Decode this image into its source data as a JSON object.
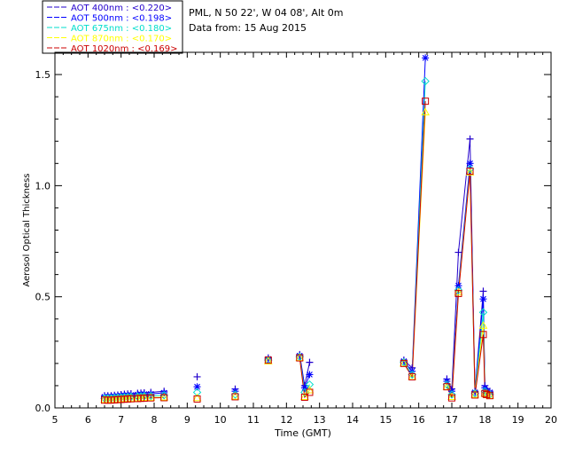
{
  "info": {
    "location": "PML, N 50 22', W 04 08', Alt 0m",
    "date_line": "Data from: 15 Aug 2015"
  },
  "chart_data": {
    "type": "scatter",
    "xlabel": "Time (GMT)",
    "ylabel": "Aerosol Optical Thickness",
    "xlim": [
      5,
      20
    ],
    "ylim": [
      0,
      1.6
    ],
    "x_ticks": [
      "5",
      "6",
      "7",
      "8",
      "9",
      "10",
      "11",
      "12",
      "13",
      "14",
      "15",
      "16",
      "17",
      "18",
      "19",
      "20"
    ],
    "y_ticks": [
      "0.0",
      "0.5",
      "1.0",
      "1.5"
    ],
    "grid": false,
    "legend_position": "top-left, outside plot",
    "series": [
      {
        "name": "AOT  400nm : <0.220>",
        "color": "#2200cc",
        "marker": "plus",
        "points": [
          [
            6.5,
            0.055
          ],
          [
            6.6,
            0.055
          ],
          [
            6.7,
            0.055
          ],
          [
            6.8,
            0.057
          ],
          [
            6.9,
            0.058
          ],
          [
            7.0,
            0.06
          ],
          [
            7.1,
            0.062
          ],
          [
            7.2,
            0.063
          ],
          [
            7.3,
            0.064
          ],
          [
            7.5,
            0.066
          ],
          [
            7.6,
            0.067
          ],
          [
            7.7,
            0.068
          ],
          [
            7.9,
            0.07
          ],
          [
            8.3,
            0.075
          ],
          [
            9.3,
            0.14
          ],
          [
            10.45,
            0.085
          ],
          [
            11.45,
            0.225
          ],
          [
            12.4,
            0.24
          ],
          [
            12.55,
            0.1
          ],
          [
            12.7,
            0.205
          ],
          [
            15.55,
            0.215
          ],
          [
            15.8,
            0.18
          ],
          [
            16.85,
            0.13
          ],
          [
            17.0,
            0.085
          ],
          [
            17.2,
            0.7
          ],
          [
            17.55,
            1.21
          ],
          [
            17.7,
            0.075
          ],
          [
            17.95,
            0.525
          ],
          [
            18.0,
            0.1
          ],
          [
            18.05,
            0.085
          ],
          [
            18.15,
            0.075
          ]
        ]
      },
      {
        "name": "AOT  500nm : <0.198>",
        "color": "#0000ff",
        "marker": "asterisk",
        "points": [
          [
            6.5,
            0.05
          ],
          [
            6.6,
            0.05
          ],
          [
            6.7,
            0.05
          ],
          [
            6.8,
            0.052
          ],
          [
            6.9,
            0.053
          ],
          [
            7.0,
            0.055
          ],
          [
            7.1,
            0.056
          ],
          [
            7.2,
            0.057
          ],
          [
            7.3,
            0.058
          ],
          [
            7.5,
            0.06
          ],
          [
            7.6,
            0.061
          ],
          [
            7.7,
            0.062
          ],
          [
            7.9,
            0.063
          ],
          [
            8.3,
            0.068
          ],
          [
            9.3,
            0.095
          ],
          [
            10.45,
            0.075
          ],
          [
            11.45,
            0.22
          ],
          [
            12.4,
            0.235
          ],
          [
            12.55,
            0.09
          ],
          [
            12.7,
            0.15
          ],
          [
            15.55,
            0.21
          ],
          [
            15.8,
            0.165
          ],
          [
            16.2,
            1.575
          ],
          [
            16.85,
            0.12
          ],
          [
            17.0,
            0.075
          ],
          [
            17.2,
            0.55
          ],
          [
            17.55,
            1.1
          ],
          [
            17.7,
            0.07
          ],
          [
            17.95,
            0.49
          ],
          [
            18.0,
            0.09
          ],
          [
            18.05,
            0.075
          ],
          [
            18.15,
            0.07
          ]
        ]
      },
      {
        "name": "AOT  675nm : <0.180>",
        "color": "#00ddcc",
        "marker": "diamond",
        "points": [
          [
            6.5,
            0.043
          ],
          [
            6.6,
            0.043
          ],
          [
            6.7,
            0.043
          ],
          [
            6.8,
            0.045
          ],
          [
            6.9,
            0.046
          ],
          [
            7.0,
            0.047
          ],
          [
            7.1,
            0.048
          ],
          [
            7.2,
            0.049
          ],
          [
            7.3,
            0.05
          ],
          [
            7.5,
            0.051
          ],
          [
            7.6,
            0.052
          ],
          [
            7.7,
            0.053
          ],
          [
            7.9,
            0.054
          ],
          [
            8.3,
            0.057
          ],
          [
            9.3,
            0.07
          ],
          [
            10.45,
            0.06
          ],
          [
            11.45,
            0.215
          ],
          [
            12.4,
            0.23
          ],
          [
            12.55,
            0.07
          ],
          [
            12.7,
            0.105
          ],
          [
            15.55,
            0.205
          ],
          [
            15.8,
            0.15
          ],
          [
            16.2,
            1.47
          ],
          [
            16.85,
            0.105
          ],
          [
            17.0,
            0.06
          ],
          [
            17.2,
            0.53
          ],
          [
            17.55,
            1.075
          ],
          [
            17.7,
            0.065
          ],
          [
            17.95,
            0.43
          ],
          [
            18.0,
            0.075
          ],
          [
            18.05,
            0.065
          ],
          [
            18.15,
            0.06
          ]
        ]
      },
      {
        "name": "AOT  870nm : <0.170>",
        "color": "#ffff00",
        "marker": "triangle",
        "points": [
          [
            6.5,
            0.037
          ],
          [
            6.6,
            0.037
          ],
          [
            6.7,
            0.037
          ],
          [
            6.8,
            0.038
          ],
          [
            6.9,
            0.039
          ],
          [
            7.0,
            0.04
          ],
          [
            7.1,
            0.041
          ],
          [
            7.2,
            0.042
          ],
          [
            7.3,
            0.043
          ],
          [
            7.5,
            0.044
          ],
          [
            7.6,
            0.045
          ],
          [
            7.7,
            0.046
          ],
          [
            7.9,
            0.047
          ],
          [
            8.3,
            0.048
          ],
          [
            9.3,
            0.045
          ],
          [
            10.45,
            0.052
          ],
          [
            11.45,
            0.21
          ],
          [
            12.4,
            0.225
          ],
          [
            12.55,
            0.05
          ],
          [
            12.7,
            0.08
          ],
          [
            15.55,
            0.2
          ],
          [
            15.8,
            0.14
          ],
          [
            16.2,
            1.33
          ],
          [
            16.85,
            0.095
          ],
          [
            17.0,
            0.05
          ],
          [
            17.2,
            0.52
          ],
          [
            17.55,
            1.06
          ],
          [
            17.7,
            0.06
          ],
          [
            17.95,
            0.37
          ],
          [
            18.0,
            0.065
          ],
          [
            18.05,
            0.06
          ],
          [
            18.15,
            0.055
          ]
        ]
      },
      {
        "name": "AOT 1020nm : <0.169>",
        "color": "#cc0000",
        "marker": "square",
        "points": [
          [
            6.5,
            0.035
          ],
          [
            6.6,
            0.035
          ],
          [
            6.7,
            0.035
          ],
          [
            6.8,
            0.036
          ],
          [
            6.9,
            0.037
          ],
          [
            7.0,
            0.038
          ],
          [
            7.1,
            0.039
          ],
          [
            7.2,
            0.04
          ],
          [
            7.3,
            0.041
          ],
          [
            7.5,
            0.042
          ],
          [
            7.6,
            0.043
          ],
          [
            7.7,
            0.044
          ],
          [
            7.9,
            0.045
          ],
          [
            8.3,
            0.046
          ],
          [
            9.3,
            0.04
          ],
          [
            10.45,
            0.05
          ],
          [
            11.45,
            0.215
          ],
          [
            12.4,
            0.225
          ],
          [
            12.55,
            0.048
          ],
          [
            12.7,
            0.07
          ],
          [
            15.55,
            0.2
          ],
          [
            15.8,
            0.14
          ],
          [
            16.2,
            1.38
          ],
          [
            16.85,
            0.095
          ],
          [
            17.0,
            0.045
          ],
          [
            17.2,
            0.515
          ],
          [
            17.55,
            1.065
          ],
          [
            17.7,
            0.058
          ],
          [
            17.95,
            0.33
          ],
          [
            18.0,
            0.065
          ],
          [
            18.05,
            0.06
          ],
          [
            18.15,
            0.055
          ]
        ]
      }
    ]
  }
}
